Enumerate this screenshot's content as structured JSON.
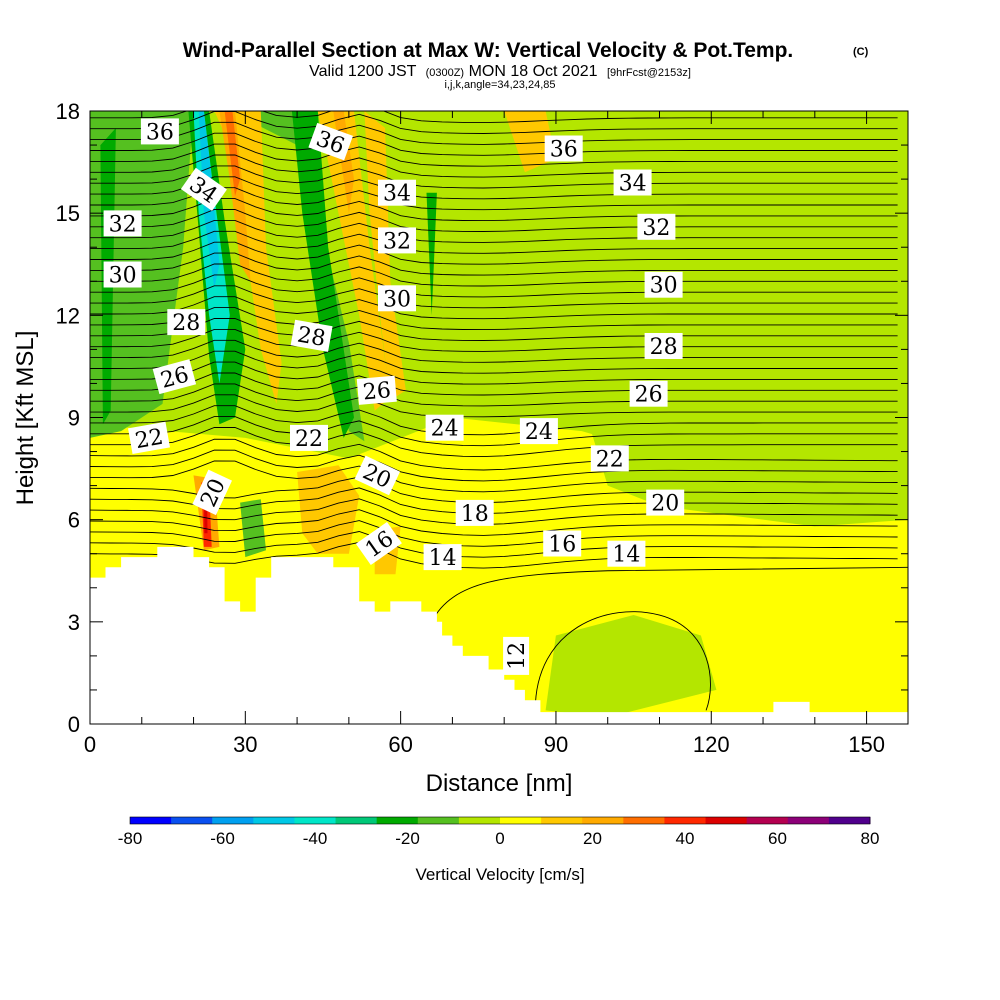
{
  "chart_data": {
    "type": "heatmap",
    "title": "Wind-Parallel Section at Max W: Vertical Velocity & Pot.Temp.",
    "title_mark": "(C)",
    "subtitle_parts": [
      "Valid 1200 JST",
      "(0300Z)",
      "MON 18 Oct 2021",
      "[9hrFcst@2153z]"
    ],
    "subtitle2": "i,j,k,angle=34,23,24,85",
    "xlabel": "Distance [nm]",
    "ylabel": "Height [Kft MSL]",
    "xlim": [
      0,
      158
    ],
    "ylim": [
      0,
      18
    ],
    "x_ticks": [
      "0",
      "30",
      "60",
      "90",
      "120",
      "150"
    ],
    "y_ticks": [
      "0",
      "3",
      "6",
      "9",
      "12",
      "15",
      "18"
    ],
    "colorbar": {
      "label": "Vertical Velocity [cm/s]",
      "ticks": [
        "-80",
        "-60",
        "-40",
        "-20",
        "0",
        "20",
        "40",
        "60",
        "80"
      ],
      "bounds": [
        -80,
        80
      ],
      "colors": [
        "#0000ff",
        "#0a50f0",
        "#00a0f0",
        "#00c8e6",
        "#00e6c8",
        "#00c878",
        "#00aa00",
        "#55c020",
        "#b4e600",
        "#ffff00",
        "#ffc800",
        "#ffaa00",
        "#ff6e00",
        "#ff2800",
        "#dc0000",
        "#b40050",
        "#8c0078",
        "#50008c"
      ]
    },
    "contour_labels": [
      {
        "text": "36",
        "x": 13.5,
        "y": 17.4,
        "rot": 0
      },
      {
        "text": "36",
        "x": 46.5,
        "y": 17.1,
        "rot": 20
      },
      {
        "text": "36",
        "x": 91.5,
        "y": 16.9,
        "rot": 0
      },
      {
        "text": "34",
        "x": 22,
        "y": 15.7,
        "rot": 35
      },
      {
        "text": "34",
        "x": 59.3,
        "y": 15.6,
        "rot": 0
      },
      {
        "text": "34",
        "x": 104.8,
        "y": 15.9,
        "rot": 0
      },
      {
        "text": "32",
        "x": 6.3,
        "y": 14.7,
        "rot": 0
      },
      {
        "text": "32",
        "x": 59.3,
        "y": 14.2,
        "rot": 0
      },
      {
        "text": "32",
        "x": 109.4,
        "y": 14.6,
        "rot": 0
      },
      {
        "text": "30",
        "x": 6.3,
        "y": 13.2,
        "rot": 0
      },
      {
        "text": "30",
        "x": 59.3,
        "y": 12.5,
        "rot": 0
      },
      {
        "text": "30",
        "x": 110.8,
        "y": 12.9,
        "rot": 0
      },
      {
        "text": "28",
        "x": 18.6,
        "y": 11.8,
        "rot": 0
      },
      {
        "text": "28",
        "x": 42.8,
        "y": 11.4,
        "rot": 10
      },
      {
        "text": "28",
        "x": 110.8,
        "y": 11.1,
        "rot": 0
      },
      {
        "text": "26",
        "x": 16.3,
        "y": 10.2,
        "rot": -15
      },
      {
        "text": "26",
        "x": 55.4,
        "y": 9.8,
        "rot": -5
      },
      {
        "text": "26",
        "x": 107.9,
        "y": 9.7,
        "rot": 0
      },
      {
        "text": "24",
        "x": 68.5,
        "y": 8.7,
        "rot": 0
      },
      {
        "text": "24",
        "x": 86.7,
        "y": 8.6,
        "rot": 0
      },
      {
        "text": "22",
        "x": 11.4,
        "y": 8.4,
        "rot": -10
      },
      {
        "text": "22",
        "x": 42.3,
        "y": 8.4,
        "rot": 0
      },
      {
        "text": "22",
        "x": 100.4,
        "y": 7.8,
        "rot": 0
      },
      {
        "text": "20",
        "x": 23.6,
        "y": 6.8,
        "rot": -65
      },
      {
        "text": "20",
        "x": 55.5,
        "y": 7.3,
        "rot": 25
      },
      {
        "text": "20",
        "x": 111.1,
        "y": 6.5,
        "rot": 0
      },
      {
        "text": "18",
        "x": 74.3,
        "y": 6.2,
        "rot": 0
      },
      {
        "text": "16",
        "x": 55.8,
        "y": 5.3,
        "rot": -35
      },
      {
        "text": "16",
        "x": 91.2,
        "y": 5.3,
        "rot": 0
      },
      {
        "text": "14",
        "x": 68.1,
        "y": 4.9,
        "rot": 0
      },
      {
        "text": "14",
        "x": 103.6,
        "y": 5.0,
        "rot": 0
      },
      {
        "text": "12",
        "x": 82.3,
        "y": 2.0,
        "rot": -90
      }
    ],
    "terrain": [
      [
        0,
        4.3
      ],
      [
        3,
        4.3
      ],
      [
        3,
        4.6
      ],
      [
        6,
        4.6
      ],
      [
        6,
        4.9
      ],
      [
        13,
        4.9
      ],
      [
        13,
        5.2
      ],
      [
        20,
        5.2
      ],
      [
        20,
        4.9
      ],
      [
        23,
        4.9
      ],
      [
        23,
        4.6
      ],
      [
        26,
        4.6
      ],
      [
        26,
        3.6
      ],
      [
        29,
        3.6
      ],
      [
        29,
        3.3
      ],
      [
        32,
        3.3
      ],
      [
        32,
        4.3
      ],
      [
        35,
        4.3
      ],
      [
        35,
        4.9
      ],
      [
        47,
        4.9
      ],
      [
        47,
        4.6
      ],
      [
        52,
        4.6
      ],
      [
        52,
        3.6
      ],
      [
        55,
        3.6
      ],
      [
        55,
        3.3
      ],
      [
        58,
        3.3
      ],
      [
        58,
        3.6
      ],
      [
        64,
        3.6
      ],
      [
        64,
        3.3
      ],
      [
        67,
        3.3
      ],
      [
        67,
        3.0
      ],
      [
        68,
        3.0
      ],
      [
        68,
        2.6
      ],
      [
        70,
        2.6
      ],
      [
        70,
        2.3
      ],
      [
        72,
        2.3
      ],
      [
        72,
        2.0
      ],
      [
        77,
        2.0
      ],
      [
        77,
        1.6
      ],
      [
        80,
        1.6
      ],
      [
        80,
        1.3
      ],
      [
        82,
        1.3
      ],
      [
        82,
        1.0
      ],
      [
        84,
        1.0
      ],
      [
        84,
        0.7
      ],
      [
        87,
        0.7
      ],
      [
        87,
        0.35
      ],
      [
        132,
        0.35
      ],
      [
        132,
        0.65
      ],
      [
        139,
        0.65
      ],
      [
        139,
        0.35
      ],
      [
        158,
        0.35
      ]
    ]
  }
}
